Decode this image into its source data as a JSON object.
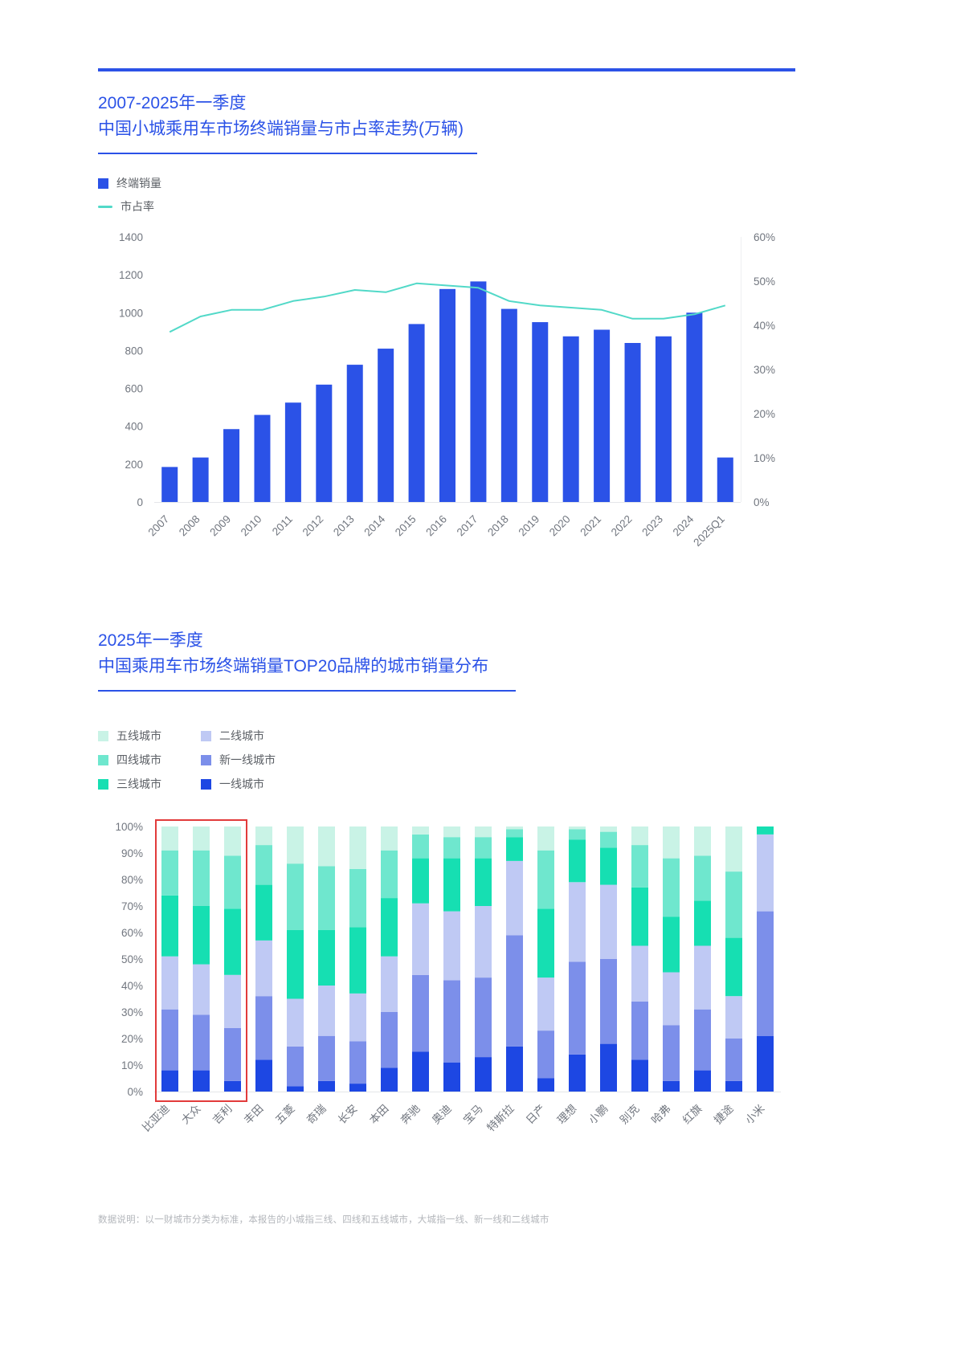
{
  "page": {
    "accent_color": "#2B52E7",
    "footnote": "数据说明：以一财城市分类为标准，本报告的小城指三线、四线和五线城市，大城指一线、新一线和二线城市"
  },
  "chart1": {
    "title_line1": "2007-2025年一季度",
    "title_line2": "中国小城乘用车市场终端销量与市占率走势(万辆)",
    "legend": [
      {
        "label": "终端销量",
        "color": "#2B52E7",
        "marker": "square"
      },
      {
        "label": "市占率",
        "color": "#52D9C8",
        "marker": "line"
      }
    ]
  },
  "chart2": {
    "title_line1": "2025年一季度",
    "title_line2": "中国乘用车市场终端销量TOP20品牌的城市销量分布",
    "legend": [
      {
        "label": "五线城市",
        "color": "#C9F3E6"
      },
      {
        "label": "四线城市",
        "color": "#6FE7CE"
      },
      {
        "label": "三线城市",
        "color": "#16DFB2"
      },
      {
        "label": "二线城市",
        "color": "#BFC9F4"
      },
      {
        "label": "新一线城市",
        "color": "#7C8FEA"
      },
      {
        "label": "一线城市",
        "color": "#1D47E3"
      }
    ]
  },
  "chart_data": [
    {
      "type": "bar",
      "title": "2007-2025年一季度 中国小城乘用车市场终端销量与市占率走势(万辆)",
      "categories": [
        "2007",
        "2008",
        "2009",
        "2010",
        "2011",
        "2012",
        "2013",
        "2014",
        "2015",
        "2016",
        "2017",
        "2018",
        "2019",
        "2020",
        "2021",
        "2022",
        "2023",
        "2024",
        "2025Q1"
      ],
      "bar_series": {
        "name": "终端销量",
        "color": "#2B52E7",
        "values": [
          185,
          235,
          385,
          460,
          525,
          620,
          725,
          810,
          940,
          1125,
          1165,
          1020,
          950,
          875,
          910,
          840,
          875,
          1000,
          235
        ]
      },
      "line_series": {
        "name": "市占率",
        "color": "#52D9C8",
        "values": [
          38.5,
          42,
          43.5,
          43.5,
          45.5,
          46.5,
          48,
          47.5,
          49.5,
          49,
          48.5,
          45.5,
          44.5,
          44,
          43.5,
          41.5,
          41.5,
          42.5,
          44.5
        ]
      },
      "left_axis": {
        "min": 0,
        "max": 1400,
        "step": 200
      },
      "right_axis": {
        "min": 0,
        "max": 60,
        "step": 10,
        "suffix": "%"
      },
      "grid": false,
      "legend_position": "top-left"
    },
    {
      "type": "stacked-bar-100",
      "title": "2025年一季度 中国乘用车市场终端销量TOP20品牌的城市销量分布",
      "categories": [
        "比亚迪",
        "大众",
        "吉利",
        "丰田",
        "五菱",
        "奇瑞",
        "长安",
        "本田",
        "奔驰",
        "奥迪",
        "宝马",
        "特斯拉",
        "日产",
        "理想",
        "小鹏",
        "别克",
        "哈弗",
        "红旗",
        "捷途",
        "小米"
      ],
      "stack_order_bottom_to_top": [
        "一线城市",
        "新一线城市",
        "二线城市",
        "三线城市",
        "四线城市",
        "五线城市"
      ],
      "series": [
        {
          "name": "一线城市",
          "color": "#1D47E3",
          "values": [
            8,
            8,
            4,
            12,
            2,
            4,
            3,
            9,
            15,
            11,
            13,
            17,
            5,
            14,
            18,
            12,
            4,
            8,
            4,
            21
          ]
        },
        {
          "name": "新一线城市",
          "color": "#7C8FEA",
          "values": [
            23,
            21,
            20,
            24,
            15,
            17,
            16,
            21,
            29,
            31,
            30,
            42,
            18,
            35,
            32,
            22,
            21,
            23,
            16,
            47
          ]
        },
        {
          "name": "二线城市",
          "color": "#BFC9F4",
          "values": [
            20,
            19,
            20,
            21,
            18,
            19,
            18,
            21,
            27,
            26,
            27,
            28,
            20,
            30,
            28,
            21,
            20,
            24,
            16,
            29
          ]
        },
        {
          "name": "三线城市",
          "color": "#16DFB2",
          "values": [
            23,
            22,
            25,
            21,
            26,
            21,
            25,
            22,
            17,
            20,
            18,
            9,
            26,
            16,
            14,
            22,
            21,
            17,
            22,
            3
          ]
        },
        {
          "name": "四线城市",
          "color": "#6FE7CE",
          "values": [
            17,
            21,
            20,
            15,
            25,
            24,
            22,
            18,
            9,
            8,
            8,
            3,
            22,
            4,
            6,
            16,
            22,
            17,
            25,
            0
          ]
        },
        {
          "name": "五线城市",
          "color": "#C9F3E6",
          "values": [
            9,
            9,
            11,
            7,
            14,
            15,
            16,
            9,
            3,
            4,
            4,
            1,
            9,
            1,
            2,
            7,
            12,
            11,
            17,
            0
          ]
        }
      ],
      "y_axis": {
        "min": 0,
        "max": 100,
        "step": 10,
        "suffix": "%"
      },
      "highlight": {
        "categories": [
          "比亚迪",
          "大众",
          "吉利"
        ],
        "color": "#E23B3B"
      },
      "grid": false,
      "legend_position": "top-left"
    }
  ]
}
